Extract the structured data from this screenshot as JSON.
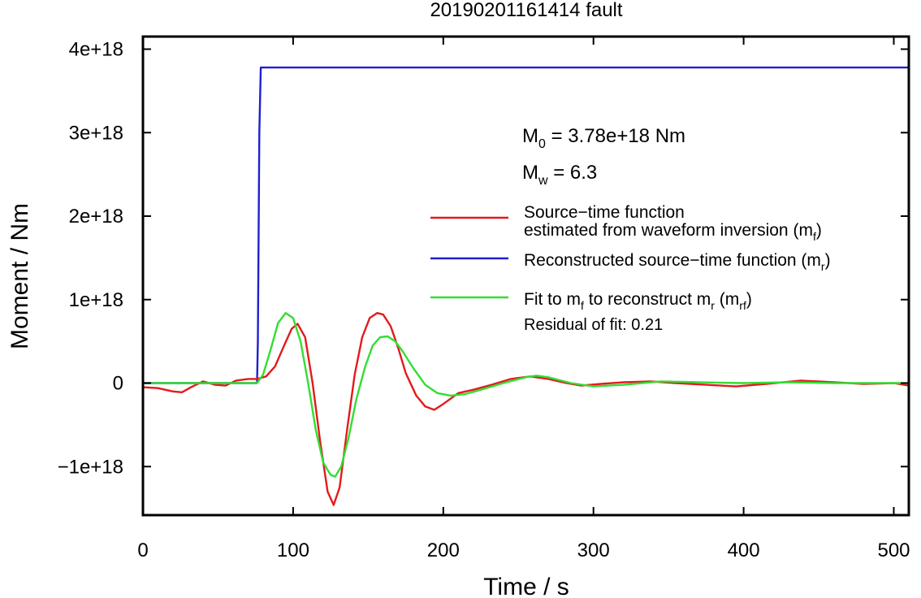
{
  "chart_data": {
    "type": "line",
    "title": "20190201161414 fault",
    "xlabel": "Time / s",
    "ylabel": "Moment / Nm",
    "xlim": [
      0,
      510
    ],
    "ylim": [
      -1.6e+18,
      4.2e+18
    ],
    "x_ticks": [
      0,
      100,
      200,
      300,
      400,
      500
    ],
    "x_tick_labels": [
      "0",
      "100",
      "200",
      "300",
      "400",
      "500"
    ],
    "y_ticks": [
      -1e+18,
      0,
      1e+18,
      2e+18,
      3e+18,
      4e+18
    ],
    "y_tick_labels": [
      "−1e+18",
      "0",
      "1e+18",
      "2e+18",
      "3e+18",
      "4e+18"
    ],
    "grid": false,
    "legend_position": "right",
    "annotations": {
      "m0": {
        "main": "M",
        "sub": "0",
        "rest": " = 3.78e+18 Nm"
      },
      "mw": {
        "main": "M",
        "sub": "w",
        "rest": " = 6.3"
      },
      "residual": "Residual of fit: 0.21"
    },
    "legend": [
      {
        "color": "#e31a1c",
        "lines": [
          [
            "Source−time function",
            ""
          ],
          [
            "estimated from waveform inversion (m",
            "f",
            ")"
          ]
        ]
      },
      {
        "color": "#1f1fd0",
        "lines": [
          [
            "Reconstructed source−time function (m",
            "r",
            ")"
          ]
        ]
      },
      {
        "color": "#33dd33",
        "lines": [
          [
            "Fit to m",
            "f",
            " to reconstruct m",
            "r",
            " (m",
            "rf",
            ")"
          ]
        ]
      }
    ],
    "series": [
      {
        "color": "#1f1fd0",
        "x": [
          0,
          76,
          76.5,
          77.5,
          78.5,
          510
        ],
        "y": [
          0,
          0,
          5e+17,
          3e+18,
          3.78e+18,
          3.78e+18
        ]
      },
      {
        "color": "#e31a1c",
        "x": [
          0,
          10,
          20,
          26,
          32,
          40,
          48,
          55,
          62,
          70,
          76,
          82,
          88,
          94,
          99,
          103,
          108,
          113,
          118,
          123,
          127,
          131,
          136,
          141,
          146,
          151,
          156,
          160,
          165,
          170,
          175,
          182,
          188,
          194,
          200,
          210,
          220,
          232,
          245,
          258,
          270,
          282,
          292,
          305,
          320,
          338,
          355,
          375,
          395,
          415,
          438,
          460,
          480,
          500,
          510
        ],
        "y": [
          -5e+16,
          -6e+16,
          -1e+17,
          -1.1e+17,
          -5e+16,
          2e+16,
          -2e+16,
          -3e+16,
          3e+16,
          5e+16,
          5e+16,
          8e+16,
          2e+17,
          4.5e+17,
          6.5e+17,
          7.1e+17,
          5.5e+17,
          0.0,
          -7e+17,
          -1.3e+18,
          -1.46e+18,
          -1.25e+18,
          -5.5e+17,
          1e+17,
          5.5e+17,
          7.8e+17,
          8.4e+17,
          8.2e+17,
          6.8e+17,
          4.2e+17,
          1.2e+17,
          -1.5e+17,
          -2.8e+17,
          -3.2e+17,
          -2.5e+17,
          -1.2e+17,
          -8e+16,
          -2e+16,
          5e+16,
          8e+16,
          5e+16,
          0.0,
          -3e+16,
          -1e+16,
          1e+16,
          2e+16,
          0.0,
          -2e+16,
          -4e+16,
          -1e+16,
          3e+16,
          1e+16,
          -1e+16,
          0.0,
          -3e+16
        ]
      },
      {
        "color": "#33dd33",
        "x": [
          0,
          30,
          60,
          70,
          76,
          80,
          85,
          90,
          95,
          100,
          105,
          110,
          115,
          120,
          125,
          128,
          132,
          137,
          142,
          148,
          153,
          158,
          163,
          168,
          173,
          180,
          188,
          196,
          205,
          215,
          225,
          240,
          255,
          262,
          270,
          285,
          300,
          320,
          345,
          370,
          400,
          430,
          460,
          490,
          510
        ],
        "y": [
          0,
          0,
          0,
          0,
          0,
          1e+17,
          4e+17,
          7.2e+17,
          8.4e+17,
          7.8e+17,
          5e+17,
          0.0,
          -5.5e+17,
          -9.5e+17,
          -1.1e+18,
          -1.12e+18,
          -1e+18,
          -6.5e+17,
          -2e+17,
          2e+17,
          4.5e+17,
          5.5e+17,
          5.6e+17,
          5e+17,
          3.8e+17,
          1.8e+17,
          -2e+16,
          -1.2e+17,
          -1.5e+17,
          -1.3e+17,
          -8e+16,
          0.0,
          7e+16,
          9e+16,
          7e+16,
          0.0,
          -4e+16,
          -2e+16,
          2e+16,
          1e+16,
          0.0,
          1e+16,
          0.0,
          0.0,
          0.0
        ]
      }
    ]
  }
}
